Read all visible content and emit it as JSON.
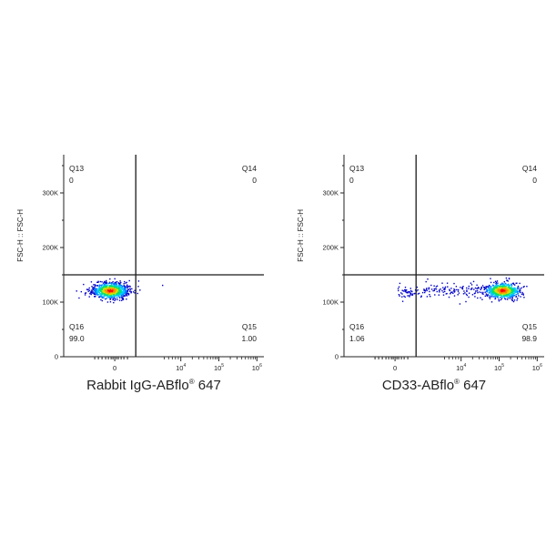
{
  "chart_data": [
    {
      "type": "scatter",
      "xlabel": "Rabbit IgG-ABflo",
      "xlabel_sup": "®",
      "xlabel_suffix": " 647",
      "ylabel": "FSC-H :: FSC-H",
      "x_scale": "biexponential",
      "x_ticks": [
        {
          "base": "0",
          "sup": ""
        },
        {
          "base": "10",
          "sup": "4"
        },
        {
          "base": "10",
          "sup": "5"
        },
        {
          "base": "10",
          "sup": "6"
        }
      ],
      "y_ticks": [
        "0",
        "100K",
        "200K",
        "300K"
      ],
      "ylim": [
        0,
        370000
      ],
      "gate": {
        "y": 150000
      },
      "quadrants": [
        {
          "name": "Q13",
          "value": "0"
        },
        {
          "name": "Q14",
          "value": "0"
        },
        {
          "name": "Q15",
          "value": "1.00"
        },
        {
          "name": "Q16",
          "value": "99.0"
        }
      ],
      "population": "main cluster centered near x = 0, y ≈ 120K"
    },
    {
      "type": "scatter",
      "xlabel": "CD33-ABflo",
      "xlabel_sup": "®",
      "xlabel_suffix": " 647",
      "ylabel": "FSC-H :: FSC-H",
      "x_scale": "biexponential",
      "x_ticks": [
        {
          "base": "0",
          "sup": ""
        },
        {
          "base": "10",
          "sup": "4"
        },
        {
          "base": "10",
          "sup": "5"
        },
        {
          "base": "10",
          "sup": "6"
        }
      ],
      "y_ticks": [
        "0",
        "100K",
        "200K",
        "300K"
      ],
      "ylim": [
        0,
        370000
      ],
      "gate": {
        "y": 150000
      },
      "quadrants": [
        {
          "name": "Q13",
          "value": "0"
        },
        {
          "name": "Q14",
          "value": "0"
        },
        {
          "name": "Q15",
          "value": "98.9"
        },
        {
          "name": "Q16",
          "value": "1.06"
        }
      ],
      "population": "main cluster centered near x ≈ 10^5, y ≈ 120K"
    }
  ],
  "colors": {
    "axis": "#222222",
    "gate": "#1a1a1a",
    "density": [
      "#0000c8",
      "#0078ff",
      "#00c8ff",
      "#00e070",
      "#d0e000",
      "#ff8c00",
      "#ff0000"
    ]
  }
}
